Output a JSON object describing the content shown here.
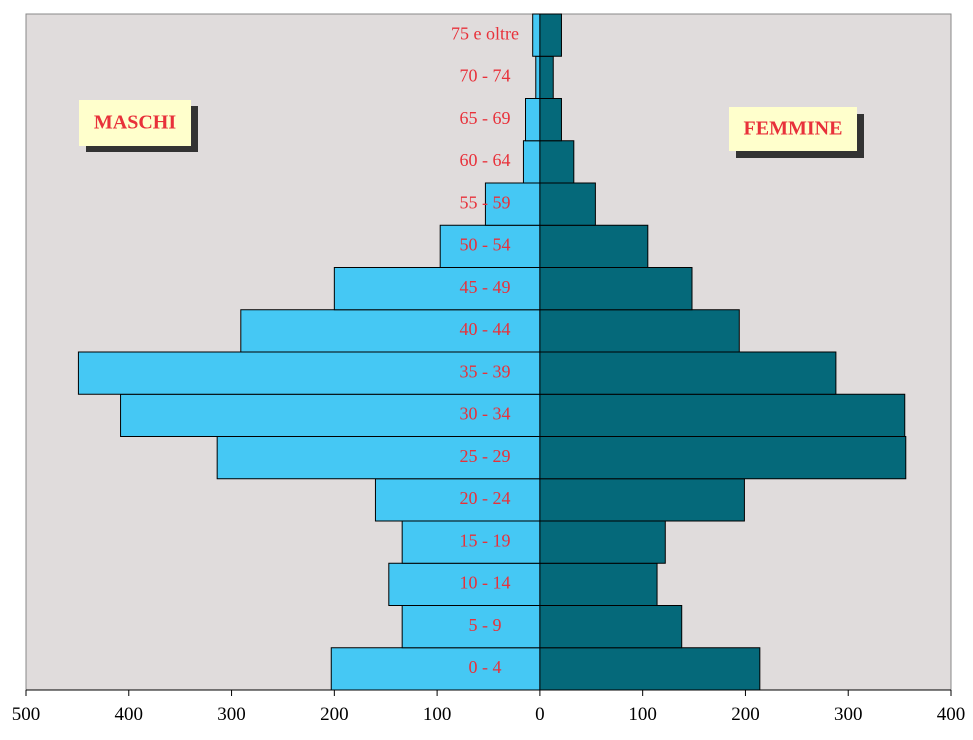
{
  "chart_data": {
    "type": "bar",
    "orientation": "horizontal",
    "subtype": "population-pyramid",
    "categories": [
      "0 -  4",
      "5 -  9",
      "10 - 14",
      "15 - 19",
      "20 - 24",
      "25 - 29",
      "30 - 34",
      "35 - 39",
      "40 - 44",
      "45 - 49",
      "50 - 54",
      "55 - 59",
      "60 - 64",
      "65 - 69",
      "70 - 74",
      "75 e oltre"
    ],
    "series": [
      {
        "name": "MASCHI",
        "side": "left",
        "color": "#45c8f4",
        "values": [
          203,
          134,
          147,
          134,
          160,
          314,
          408,
          449,
          291,
          200,
          97,
          53,
          16,
          14,
          4,
          7
        ]
      },
      {
        "name": "FEMMINE",
        "side": "right",
        "color": "#05697a",
        "values": [
          214,
          138,
          114,
          122,
          199,
          356,
          355,
          288,
          194,
          148,
          105,
          54,
          33,
          21,
          13,
          21
        ]
      }
    ],
    "xlim": [
      -500,
      400
    ],
    "xticks": [
      -500,
      -400,
      -300,
      -200,
      -100,
      0,
      100,
      200,
      300,
      400
    ],
    "xtick_labels": [
      "500",
      "400",
      "300",
      "200",
      "100",
      "0",
      "100",
      "200",
      "300",
      "400"
    ],
    "legend": {
      "left_label": "MASCHI",
      "right_label": "FEMMINE"
    },
    "colors": {
      "plot_background": "#e0dcdc",
      "label_color": "#e8313a",
      "legend_box": "#ffffcc",
      "legend_shadow": "#333333"
    }
  }
}
